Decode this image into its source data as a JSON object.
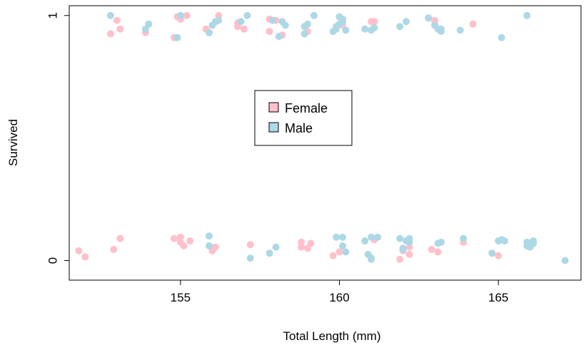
{
  "chart_data": {
    "type": "scatter",
    "title": "",
    "xlabel": "Total Length (mm)",
    "ylabel": "Survived",
    "xlim": [
      151.5,
      167.6
    ],
    "ylim": [
      -0.08,
      1.04
    ],
    "xticks": [
      155,
      160,
      165
    ],
    "xtick_labels": [
      "155",
      "160",
      "165"
    ],
    "yticks": [
      0,
      1
    ],
    "ytick_labels": [
      "0",
      "1"
    ],
    "grid": false,
    "legend_position": "center",
    "series": [
      {
        "name": "Female",
        "color": "#FFC0CB",
        "points": [
          [
            151.8,
            0.04
          ],
          [
            152.0,
            0.015
          ],
          [
            152.9,
            0.045
          ],
          [
            153.1,
            0.09
          ],
          [
            154.8,
            0.09
          ],
          [
            155.0,
            0.095
          ],
          [
            155.0,
            0.075
          ],
          [
            155.1,
            0.06
          ],
          [
            155.3,
            0.08
          ],
          [
            156.0,
            0.04
          ],
          [
            156.1,
            0.055
          ],
          [
            157.2,
            0.065
          ],
          [
            158.8,
            0.075
          ],
          [
            158.8,
            0.055
          ],
          [
            159.0,
            0.05
          ],
          [
            159.1,
            0.07
          ],
          [
            159.8,
            0.02
          ],
          [
            160.0,
            0.035
          ],
          [
            161.1,
            0.085
          ],
          [
            161.9,
            0.005
          ],
          [
            162.0,
            0.04
          ],
          [
            162.2,
            0.025
          ],
          [
            162.2,
            0.055
          ],
          [
            162.9,
            0.045
          ],
          [
            163.1,
            0.035
          ],
          [
            163.9,
            0.075
          ],
          [
            165.0,
            0.02
          ],
          [
            152.8,
            0.925
          ],
          [
            153.0,
            0.98
          ],
          [
            153.1,
            0.945
          ],
          [
            153.9,
            0.93
          ],
          [
            154.8,
            0.91
          ],
          [
            154.9,
            0.995
          ],
          [
            155.0,
            0.985
          ],
          [
            155.2,
            1.0
          ],
          [
            155.8,
            0.945
          ],
          [
            156.2,
            1.0
          ],
          [
            156.8,
            0.955
          ],
          [
            156.8,
            0.97
          ],
          [
            157.0,
            0.945
          ],
          [
            157.8,
            0.985
          ],
          [
            157.8,
            0.935
          ],
          [
            158.0,
            0.98
          ],
          [
            158.1,
            0.915
          ],
          [
            158.2,
            0.92
          ],
          [
            159.0,
            0.935
          ],
          [
            160.1,
            0.96
          ],
          [
            161.0,
            0.975
          ],
          [
            161.1,
            0.975
          ],
          [
            162.8,
            0.99
          ],
          [
            163.0,
            0.98
          ],
          [
            163.0,
            0.975
          ],
          [
            164.2,
            0.965
          ]
        ]
      },
      {
        "name": "Male",
        "color": "#ADD8E6",
        "points": [
          [
            155.9,
            0.06
          ],
          [
            155.9,
            0.1
          ],
          [
            157.2,
            0.01
          ],
          [
            157.8,
            0.03
          ],
          [
            158.0,
            0.055
          ],
          [
            159.9,
            0.095
          ],
          [
            160.1,
            0.095
          ],
          [
            160.1,
            0.06
          ],
          [
            160.2,
            0.035
          ],
          [
            160.8,
            0.08
          ],
          [
            160.9,
            0.025
          ],
          [
            161.0,
            0.005
          ],
          [
            161.0,
            0.01
          ],
          [
            161.0,
            0.095
          ],
          [
            161.2,
            0.095
          ],
          [
            161.9,
            0.09
          ],
          [
            162.0,
            0.05
          ],
          [
            162.1,
            0.08
          ],
          [
            162.2,
            0.09
          ],
          [
            162.2,
            0.075
          ],
          [
            162.0,
            0.045
          ],
          [
            163.1,
            0.07
          ],
          [
            163.2,
            0.075
          ],
          [
            163.9,
            0.09
          ],
          [
            164.8,
            0.03
          ],
          [
            165.0,
            0.08
          ],
          [
            165.1,
            0.085
          ],
          [
            165.2,
            0.08
          ],
          [
            165.9,
            0.075
          ],
          [
            165.9,
            0.06
          ],
          [
            166.0,
            0.055
          ],
          [
            166.1,
            0.08
          ],
          [
            166.1,
            0.07
          ],
          [
            167.1,
            0.0
          ],
          [
            152.8,
            1.0
          ],
          [
            153.9,
            0.945
          ],
          [
            154.0,
            0.965
          ],
          [
            154.9,
            0.91
          ],
          [
            155.0,
            1.0
          ],
          [
            155.9,
            0.93
          ],
          [
            156.0,
            0.96
          ],
          [
            156.1,
            0.975
          ],
          [
            156.2,
            0.98
          ],
          [
            156.9,
            0.975
          ],
          [
            157.1,
            1.0
          ],
          [
            157.9,
            0.98
          ],
          [
            158.1,
            0.915
          ],
          [
            158.2,
            0.975
          ],
          [
            158.3,
            0.96
          ],
          [
            158.9,
            0.955
          ],
          [
            158.9,
            0.925
          ],
          [
            159.0,
            0.965
          ],
          [
            159.2,
            1.0
          ],
          [
            159.8,
            0.935
          ],
          [
            159.9,
            0.945
          ],
          [
            159.9,
            0.955
          ],
          [
            160.0,
            0.965
          ],
          [
            160.0,
            0.995
          ],
          [
            160.1,
            0.985
          ],
          [
            160.1,
            0.975
          ],
          [
            160.2,
            0.94
          ],
          [
            160.8,
            0.945
          ],
          [
            161.0,
            0.94
          ],
          [
            161.1,
            0.95
          ],
          [
            161.9,
            0.955
          ],
          [
            162.1,
            0.975
          ],
          [
            162.8,
            0.99
          ],
          [
            163.0,
            0.96
          ],
          [
            163.1,
            0.945
          ],
          [
            163.2,
            0.935
          ],
          [
            163.2,
            0.945
          ],
          [
            163.8,
            0.94
          ],
          [
            165.1,
            0.91
          ],
          [
            165.9,
            1.0
          ]
        ]
      }
    ]
  }
}
